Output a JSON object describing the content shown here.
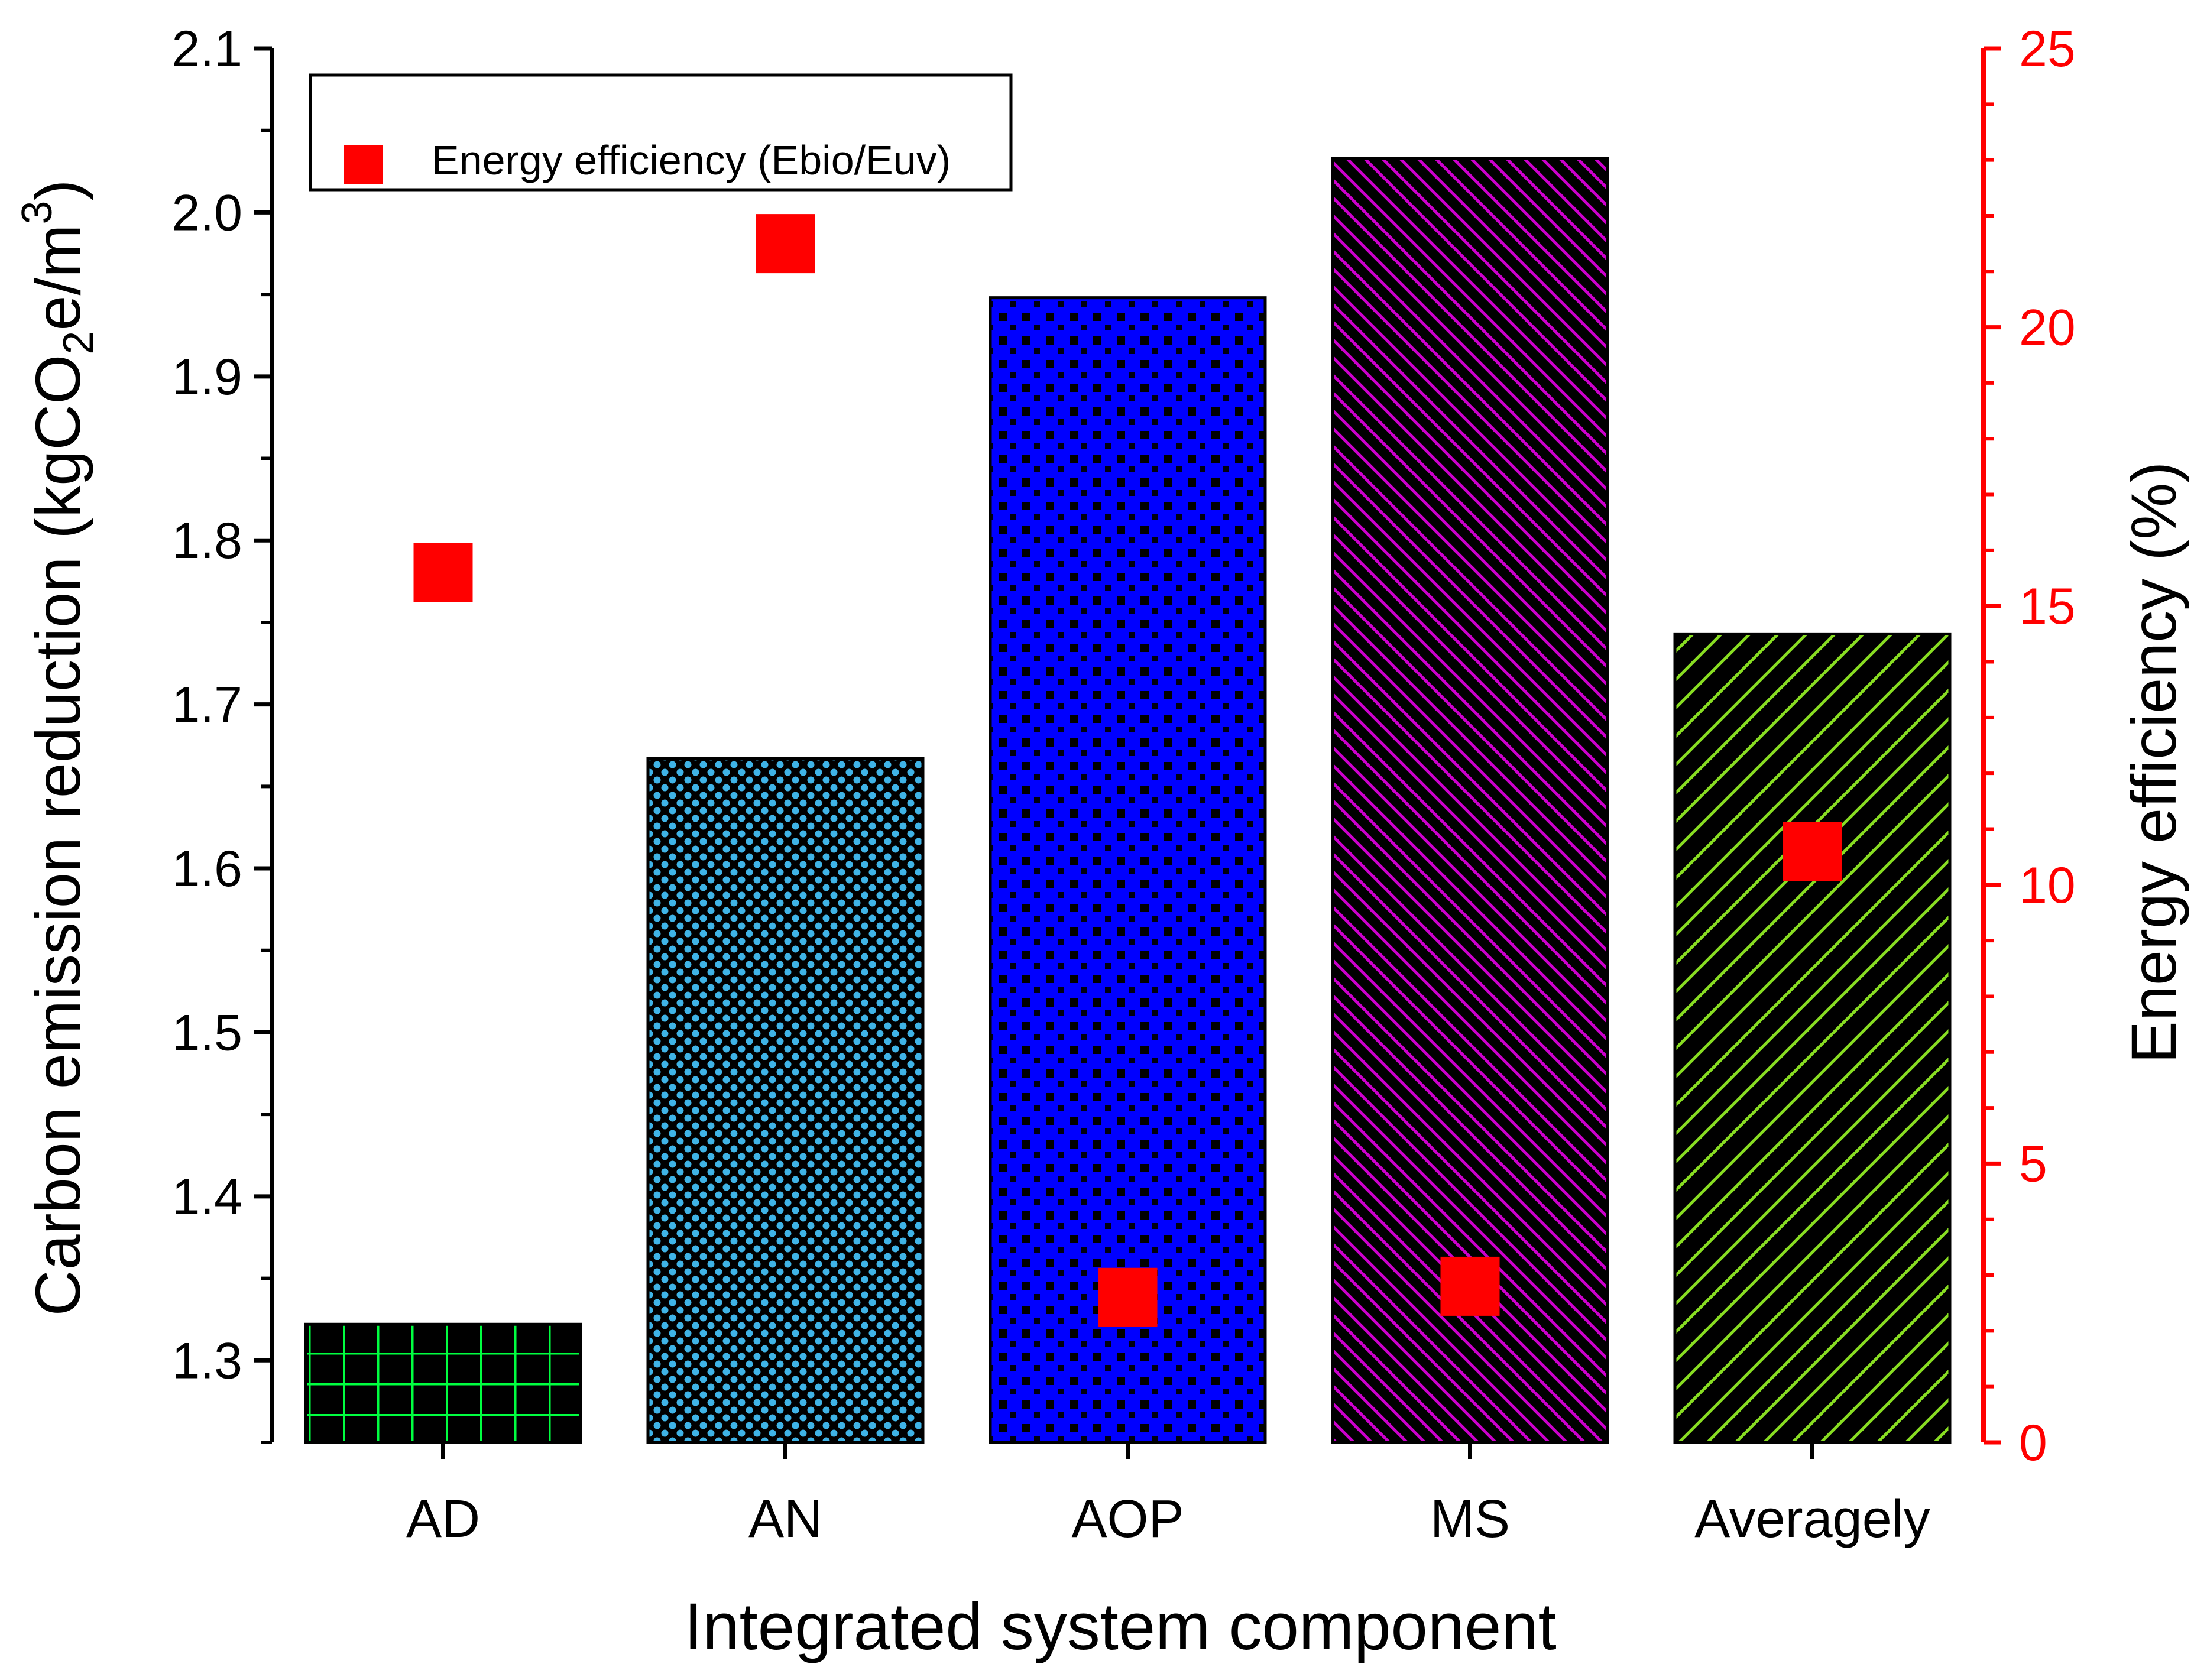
{
  "chart_data": {
    "type": "bar",
    "xlabel": "Integrated system component",
    "ylabel_main": "Carbon emission reduction (kgCO",
    "ylabel_sub": "2",
    "ylabel_tail": "e/m",
    "ylabel_sup": "3",
    "ylabel_close": ")",
    "y2label": "Energy efficiency (%)",
    "categories": [
      "AD",
      "AN",
      "AOP",
      "MS",
      "Averagely"
    ],
    "ylim": [
      1.25,
      2.1
    ],
    "y2lim": [
      0,
      25
    ],
    "yticks": [
      "1.3",
      "1.4",
      "1.5",
      "1.6",
      "1.7",
      "1.8",
      "1.9",
      "2.0",
      "2.1"
    ],
    "y2ticks": [
      "0",
      "5",
      "10",
      "15",
      "20",
      "25"
    ],
    "bar_series": {
      "name": "Carbon emission reduction",
      "values": [
        1.322,
        1.667,
        1.948,
        2.033,
        1.743
      ]
    },
    "scatter_series": {
      "name": "Energy efficiency (Ebio/Euv)",
      "values": [
        15.6,
        21.5,
        2.6,
        2.8,
        10.6
      ]
    },
    "legend": {
      "label": "Energy efficiency (Ebio/Euv)",
      "placement": "top-left"
    },
    "colors": {
      "scatter": "#ff0000",
      "right_axis": "#ff0000",
      "axis": "#000000",
      "bar_fill": "#000000",
      "AD_pattern": "#00ff40",
      "AN_pattern": "#3fb3e6",
      "AOP_pattern": "#0000ff",
      "MS_pattern": "#cc00cc",
      "Averagely_pattern": "#88dd22"
    }
  }
}
